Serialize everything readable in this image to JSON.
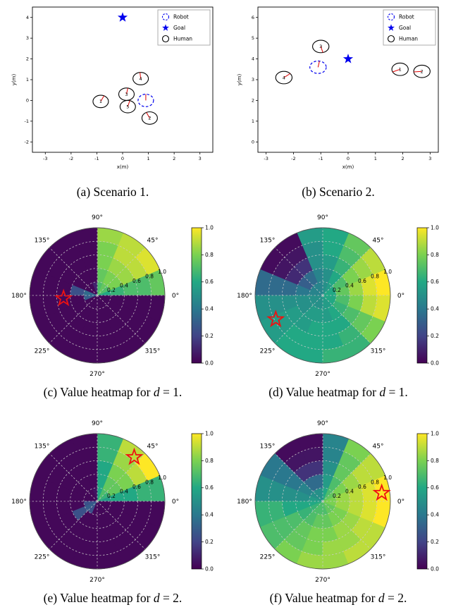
{
  "colors": {
    "goal": "#0000ee",
    "robot": "#0000ee",
    "human": "#000000",
    "annotation": "#dd0000",
    "star_marker": "#ee1111",
    "grid": "#cccccc",
    "axis": "#000000",
    "viridis": [
      {
        "t": 0.0,
        "c": "#440154"
      },
      {
        "t": 0.2,
        "c": "#414487"
      },
      {
        "t": 0.4,
        "c": "#2a788e"
      },
      {
        "t": 0.6,
        "c": "#22a884"
      },
      {
        "t": 0.8,
        "c": "#7ad151"
      },
      {
        "t": 1.0,
        "c": "#fde725"
      }
    ]
  },
  "captions": {
    "a": {
      "pre": "(a) Scenario 1.",
      "math": "",
      "post": ""
    },
    "b": {
      "pre": "(b) Scenario 2.",
      "math": "",
      "post": ""
    },
    "c": {
      "pre": "(c) Value heatmap for ",
      "math": "d",
      "post": " = 1."
    },
    "d": {
      "pre": "(d) Value heatmap for ",
      "math": "d",
      "post": " = 1."
    },
    "e": {
      "pre": "(e) Value heatmap for ",
      "math": "d",
      "post": " = 2."
    },
    "f": {
      "pre": "(f) Value heatmap for ",
      "math": "d",
      "post": " = 2."
    }
  },
  "chart_data": [
    {
      "id": "a",
      "type": "scatter",
      "xlabel": "x(m)",
      "ylabel": "y(m)",
      "xlim": [
        -3.5,
        3.5
      ],
      "ylim": [
        -2.5,
        4.5
      ],
      "xticks": [
        -3,
        -2,
        -1,
        0,
        1,
        2,
        3
      ],
      "yticks": [
        -2,
        -1,
        0,
        1,
        2,
        3,
        4
      ],
      "legend": {
        "items": [
          "Robot",
          "Goal",
          "Human"
        ]
      },
      "goal": {
        "x": 0.0,
        "y": 4.0
      },
      "robot": {
        "x": 0.9,
        "y": 0.0,
        "r": 0.3,
        "heading": 90
      },
      "humans": [
        {
          "id": "1",
          "x": -0.85,
          "y": -0.05,
          "r": 0.3,
          "heading": 65
        },
        {
          "id": "2",
          "x": 1.05,
          "y": -0.85,
          "r": 0.3,
          "heading": 115
        },
        {
          "id": "3",
          "x": 0.15,
          "y": 0.3,
          "r": 0.3,
          "heading": 80
        },
        {
          "id": "4",
          "x": 0.7,
          "y": 1.05,
          "r": 0.3,
          "heading": 95
        },
        {
          "id": "5",
          "x": 0.2,
          "y": -0.3,
          "r": 0.3,
          "heading": 75
        }
      ]
    },
    {
      "id": "b",
      "type": "scatter",
      "xlabel": "x(m)",
      "ylabel": "y(m)",
      "xlim": [
        -3.3,
        3.3
      ],
      "ylim": [
        -0.5,
        6.5
      ],
      "xticks": [
        -3,
        -2,
        -1,
        0,
        1,
        2,
        3
      ],
      "yticks": [
        0,
        1,
        2,
        3,
        4,
        5,
        6
      ],
      "legend": {
        "items": [
          "Robot",
          "Goal",
          "Human"
        ]
      },
      "goal": {
        "x": 0.0,
        "y": 4.0
      },
      "robot": {
        "x": -1.1,
        "y": 3.6,
        "r": 0.3,
        "heading": 80
      },
      "humans": [
        {
          "id": "1",
          "x": 1.9,
          "y": 3.5,
          "r": 0.3,
          "heading": 205
        },
        {
          "id": "2",
          "x": 2.7,
          "y": 3.4,
          "r": 0.3,
          "heading": 185
        },
        {
          "id": "3",
          "x": -1.0,
          "y": 4.6,
          "r": 0.3,
          "heading": 285
        },
        {
          "id": "4",
          "x": -2.35,
          "y": 3.1,
          "r": 0.3,
          "heading": 40
        }
      ]
    },
    {
      "id": "c",
      "type": "heatmap",
      "coords": "polar",
      "n_sectors": 16,
      "angle_ticks_deg": [
        0,
        45,
        90,
        135,
        180,
        225,
        270,
        315
      ],
      "angle_tick_labels": [
        "0°",
        "45°",
        "90°",
        "135°",
        "180°",
        "225°",
        "270°",
        "315°"
      ],
      "radial_ticks": [
        0.2,
        0.4,
        0.6,
        0.8,
        1.0
      ],
      "radial_tick_labels": [
        "0.2",
        "0.4",
        "0.6",
        "0.8",
        "1.0"
      ],
      "rlabel_angle_deg": 20,
      "rings": [
        [
          0.6,
          0.7,
          0.75,
          0.7,
          0.1,
          0.02,
          0.02,
          0.35,
          0.3,
          0.02,
          0.02,
          0.02,
          0.02,
          0.02,
          0.02,
          0.02
        ],
        [
          0.65,
          0.8,
          0.8,
          0.75,
          0.02,
          0.02,
          0.02,
          0.25,
          0.02,
          0.02,
          0.02,
          0.02,
          0.02,
          0.02,
          0.02,
          0.02
        ],
        [
          0.7,
          0.85,
          0.85,
          0.8,
          0.02,
          0.02,
          0.02,
          0.02,
          0.02,
          0.02,
          0.02,
          0.02,
          0.02,
          0.02,
          0.02,
          0.02
        ],
        [
          0.7,
          0.9,
          0.9,
          0.8,
          0.02,
          0.02,
          0.02,
          0.02,
          0.02,
          0.02,
          0.02,
          0.02,
          0.02,
          0.02,
          0.02,
          0.02
        ],
        [
          0.75,
          0.95,
          0.9,
          0.85,
          0.02,
          0.02,
          0.02,
          0.02,
          0.02,
          0.02,
          0.02,
          0.02,
          0.02,
          0.02,
          0.02,
          0.02
        ]
      ],
      "star": {
        "angle_deg": 185,
        "radius": 0.5
      },
      "colorbar": {
        "min": 0.0,
        "max": 1.0,
        "ticks": [
          0.0,
          0.2,
          0.4,
          0.6,
          0.8,
          1.0
        ],
        "tick_labels": [
          "0.0",
          "0.2",
          "0.4",
          "0.6",
          "0.8",
          "1.0"
        ]
      }
    },
    {
      "id": "d",
      "type": "heatmap",
      "coords": "polar",
      "n_sectors": 16,
      "angle_ticks_deg": [
        0,
        45,
        90,
        135,
        180,
        225,
        270,
        315
      ],
      "angle_tick_labels": [
        "0°",
        "45°",
        "90°",
        "135°",
        "180°",
        "225°",
        "270°",
        "315°"
      ],
      "radial_ticks": [
        0.2,
        0.4,
        0.6,
        0.8,
        1.0
      ],
      "radial_tick_labels": [
        "0.2",
        "0.4",
        "0.6",
        "0.8",
        "1.0"
      ],
      "rlabel_angle_deg": 20,
      "rings": [
        [
          0.6,
          0.6,
          0.55,
          0.5,
          0.45,
          0.45,
          0.45,
          0.45,
          0.5,
          0.5,
          0.5,
          0.5,
          0.55,
          0.55,
          0.6,
          0.6
        ],
        [
          0.75,
          0.7,
          0.6,
          0.5,
          0.45,
          0.35,
          0.3,
          0.4,
          0.5,
          0.5,
          0.55,
          0.55,
          0.55,
          0.6,
          0.65,
          0.7
        ],
        [
          0.85,
          0.8,
          0.65,
          0.55,
          0.5,
          0.15,
          0.12,
          0.35,
          0.5,
          0.55,
          0.55,
          0.6,
          0.6,
          0.6,
          0.7,
          0.8
        ],
        [
          0.95,
          0.85,
          0.7,
          0.6,
          0.5,
          0.06,
          0.06,
          0.35,
          0.5,
          0.55,
          0.6,
          0.6,
          0.6,
          0.65,
          0.75,
          0.9
        ],
        [
          1.0,
          0.9,
          0.75,
          0.6,
          0.55,
          0.03,
          0.03,
          0.35,
          0.5,
          0.55,
          0.6,
          0.6,
          0.65,
          0.65,
          0.8,
          0.95
        ]
      ],
      "star": {
        "angle_deg": 207,
        "radius": 0.78
      },
      "colorbar": {
        "min": 0.0,
        "max": 1.0,
        "ticks": [
          0.0,
          0.2,
          0.4,
          0.6,
          0.8,
          1.0
        ],
        "tick_labels": [
          "0.0",
          "0.2",
          "0.4",
          "0.6",
          "0.8",
          "1.0"
        ]
      }
    },
    {
      "id": "e",
      "type": "heatmap",
      "coords": "polar",
      "n_sectors": 16,
      "angle_ticks_deg": [
        0,
        45,
        90,
        135,
        180,
        225,
        270,
        315
      ],
      "angle_tick_labels": [
        "0°",
        "45°",
        "90°",
        "135°",
        "180°",
        "225°",
        "270°",
        "315°"
      ],
      "radial_ticks": [
        0.2,
        0.4,
        0.6,
        0.8,
        1.0
      ],
      "radial_tick_labels": [
        "0.2",
        "0.4",
        "0.6",
        "0.8",
        "1.0"
      ],
      "rlabel_angle_deg": 20,
      "rings": [
        [
          0.55,
          0.65,
          0.7,
          0.6,
          0.05,
          0.02,
          0.02,
          0.02,
          0.25,
          0.3,
          0.25,
          0.02,
          0.02,
          0.02,
          0.02,
          0.02
        ],
        [
          0.6,
          0.75,
          0.75,
          0.6,
          0.02,
          0.02,
          0.02,
          0.02,
          0.02,
          0.25,
          0.02,
          0.02,
          0.02,
          0.02,
          0.02,
          0.02
        ],
        [
          0.6,
          0.8,
          0.8,
          0.6,
          0.02,
          0.02,
          0.02,
          0.02,
          0.02,
          0.02,
          0.02,
          0.02,
          0.02,
          0.02,
          0.02,
          0.02
        ],
        [
          0.65,
          0.9,
          0.85,
          0.65,
          0.02,
          0.02,
          0.02,
          0.02,
          0.02,
          0.02,
          0.02,
          0.02,
          0.02,
          0.02,
          0.02,
          0.02
        ],
        [
          0.65,
          1.0,
          0.9,
          0.65,
          0.02,
          0.02,
          0.02,
          0.02,
          0.02,
          0.02,
          0.02,
          0.02,
          0.02,
          0.02,
          0.02,
          0.02
        ]
      ],
      "star": {
        "angle_deg": 50,
        "radius": 0.85
      },
      "colorbar": {
        "min": 0.0,
        "max": 1.0,
        "ticks": [
          0.0,
          0.2,
          0.4,
          0.6,
          0.8,
          1.0
        ],
        "tick_labels": [
          "0.0",
          "0.2",
          "0.4",
          "0.6",
          "0.8",
          "1.0"
        ]
      }
    },
    {
      "id": "f",
      "type": "heatmap",
      "coords": "polar",
      "n_sectors": 16,
      "angle_ticks_deg": [
        0,
        45,
        90,
        135,
        180,
        225,
        270,
        315
      ],
      "angle_tick_labels": [
        "0°",
        "45°",
        "90°",
        "135°",
        "180°",
        "225°",
        "270°",
        "315°"
      ],
      "radial_ticks": [
        0.2,
        0.4,
        0.6,
        0.8,
        1.0
      ],
      "radial_tick_labels": [
        "0.2",
        "0.4",
        "0.6",
        "0.8",
        "1.0"
      ],
      "rlabel_angle_deg": 20,
      "rings": [
        [
          0.8,
          0.75,
          0.7,
          0.6,
          0.5,
          0.5,
          0.5,
          0.55,
          0.6,
          0.65,
          0.7,
          0.7,
          0.7,
          0.75,
          0.75,
          0.8
        ],
        [
          0.85,
          0.8,
          0.7,
          0.55,
          0.35,
          0.35,
          0.45,
          0.5,
          0.6,
          0.65,
          0.7,
          0.75,
          0.75,
          0.8,
          0.8,
          0.85
        ],
        [
          0.9,
          0.85,
          0.75,
          0.5,
          0.15,
          0.15,
          0.4,
          0.5,
          0.6,
          0.7,
          0.75,
          0.8,
          0.8,
          0.85,
          0.85,
          0.9
        ],
        [
          0.95,
          0.9,
          0.75,
          0.45,
          0.06,
          0.06,
          0.4,
          0.5,
          0.65,
          0.7,
          0.75,
          0.8,
          0.85,
          0.85,
          0.9,
          0.95
        ],
        [
          1.0,
          0.9,
          0.8,
          0.45,
          0.03,
          0.03,
          0.4,
          0.5,
          0.65,
          0.7,
          0.8,
          0.85,
          0.85,
          0.9,
          0.9,
          1.0
        ]
      ],
      "star": {
        "angle_deg": 8,
        "radius": 0.88
      },
      "colorbar": {
        "min": 0.0,
        "max": 1.0,
        "ticks": [
          0.0,
          0.2,
          0.4,
          0.6,
          0.8,
          1.0
        ],
        "tick_labels": [
          "0.0",
          "0.2",
          "0.4",
          "0.6",
          "0.8",
          "1.0"
        ]
      }
    }
  ]
}
